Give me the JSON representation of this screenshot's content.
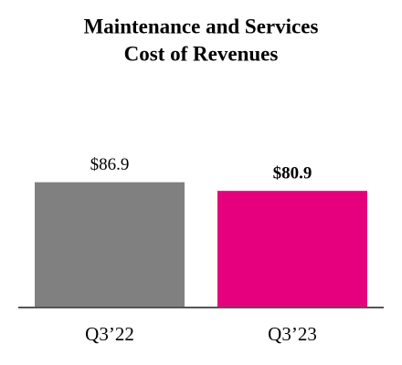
{
  "chart_data": {
    "type": "bar",
    "title": [
      "Maintenance and Services",
      "Cost of Revenues"
    ],
    "categories": [
      "Q3’22",
      "Q3’23"
    ],
    "values": [
      86.9,
      80.9
    ],
    "value_labels": [
      "$86.9",
      "$80.9"
    ],
    "colors": [
      "#808080",
      "#e6007e"
    ],
    "ylim": [
      0,
      100
    ]
  }
}
